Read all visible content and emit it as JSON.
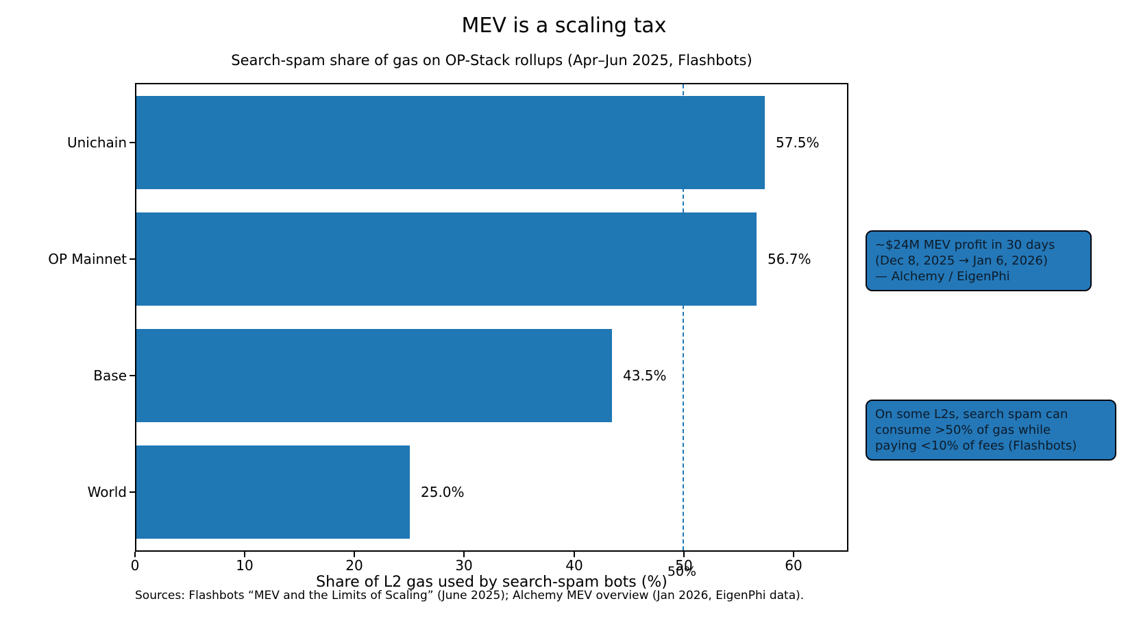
{
  "title": "MEV is a scaling tax",
  "subtitle": "Search-spam share of gas on OP-Stack rollups (Apr–Jun 2025, Flashbots)",
  "chart_data": {
    "type": "bar",
    "orientation": "horizontal",
    "categories": [
      "Unichain",
      "OP Mainnet",
      "Base",
      "World"
    ],
    "values": [
      57.5,
      56.7,
      43.5,
      25.0
    ],
    "value_labels": [
      "57.5%",
      "56.7%",
      "43.5%",
      "25.0%"
    ],
    "title": "MEV is a scaling tax",
    "subtitle": "Search-spam share of gas on OP-Stack rollups (Apr–Jun 2025, Flashbots)",
    "xlabel": "Share of L2 gas used by search-spam bots (%)",
    "ylabel": "",
    "xlim": [
      0,
      65
    ],
    "xticks": [
      0,
      10,
      20,
      30,
      40,
      50,
      60
    ],
    "grid": false,
    "legend": "none",
    "bar_color": "#1f77b4",
    "reference_line": {
      "x": 50,
      "label": "50%",
      "style": "dashed",
      "color": "#1f77b4"
    }
  },
  "annotations": {
    "box1": {
      "line1": "~$24M MEV profit in 30 days",
      "line2": "(Dec 8, 2025 → Jan 6, 2026)",
      "line3": "— Alchemy / EigenPhi"
    },
    "box2": {
      "line1": "On some L2s, search spam can",
      "line2": "consume >50% of gas while",
      "line3": "paying <10% of fees (Flashbots)"
    }
  },
  "source": "Sources: Flashbots “MEV and the Limits of Scaling” (June 2025); Alchemy MEV overview (Jan 2026, EigenPhi data)."
}
